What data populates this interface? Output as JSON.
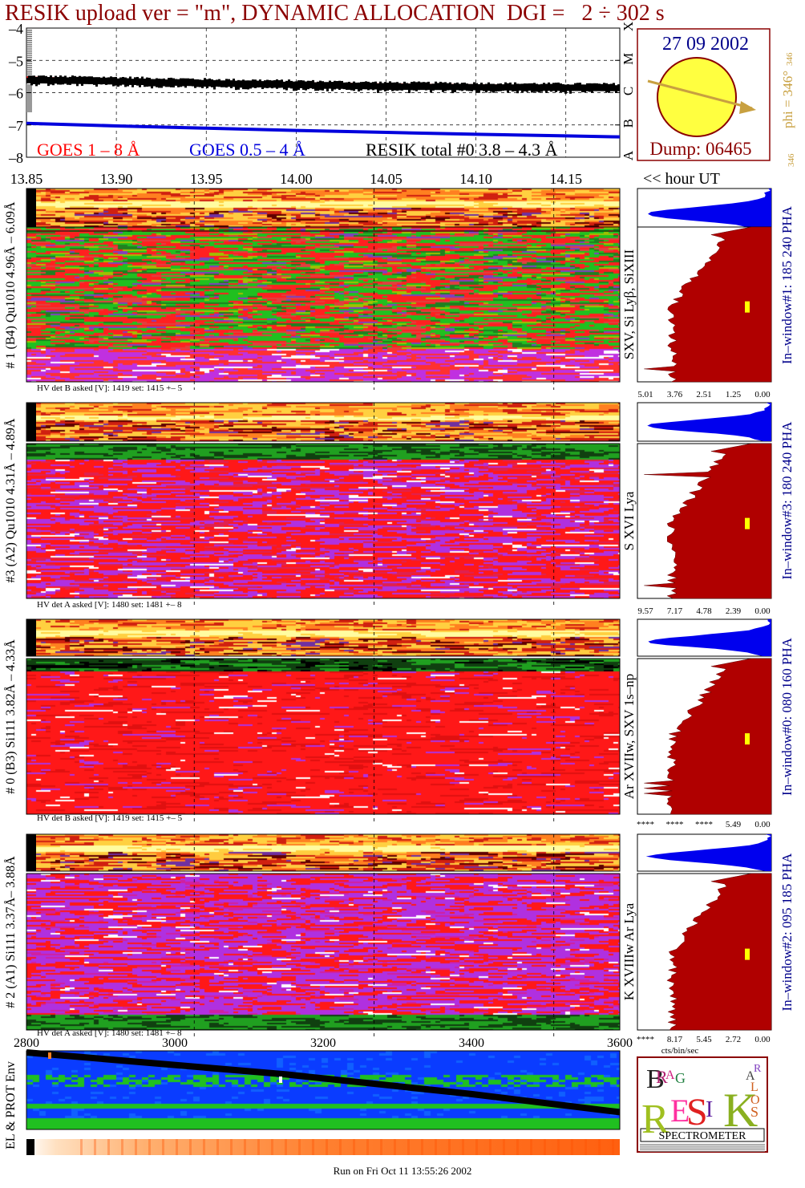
{
  "title": "RESIK upload ver = \"m\", DYNAMIC ALLOCATION  DGI =   2 ÷ 302 s",
  "footer": "Run on Fri Oct 11 13:55:26 2002",
  "colors": {
    "title": "#8b0000",
    "goes18": "#ff0000",
    "goes054": "#0000dd",
    "resik": "#000000",
    "hist_blue": "#0000ee",
    "hist_red": "#b00000",
    "marker": "#ffff00",
    "tan": "#c8a040",
    "darkblue": "#00008b"
  },
  "goes_panel": {
    "legend": {
      "goes18": "GOES 1 – 8 Å",
      "goes054": "GOES 0.5 – 4 Å",
      "resik": "RESIK total #0  3.8 – 4.3 Å"
    },
    "flare_classes": [
      "A",
      "B",
      "C",
      "M",
      "X"
    ],
    "yticks": [
      "–4",
      "–5",
      "–6",
      "–7",
      "–8"
    ]
  },
  "sun_panel": {
    "date": "27 09 2002",
    "dump": "Dump: 06465",
    "phi_label": "phi = 346°",
    "phi_small": "346",
    "phi_small2": "346"
  },
  "time_axis": {
    "ticks": [
      "13.85",
      "13.90",
      "13.95",
      "14.00",
      "14.05",
      "14.10",
      "14.15"
    ],
    "label": "<< hour UT"
  },
  "channels": [
    {
      "id": "1",
      "label": "# 1 (B4) Qu1010 4.96Å – 6.09Å",
      "lines": "SXV, Si Lyβ, SiXIII",
      "hv": "HV det B asked [V]:  1419 set:  1415  +–    5",
      "window": "In–window#1:  185 240 PHA",
      "xticks": [
        "5.01",
        "3.76",
        "2.51",
        "1.25",
        "0.00"
      ],
      "scheme": "green"
    },
    {
      "id": "3",
      "label": "#3 (A2) Qu1010  4.31Å – 4.89Å",
      "lines": "S XVI Lya",
      "hv": "HV det A asked [V]:  1480 set:  1481  +–    8",
      "window": "In–window#3:  180 240 PHA",
      "xticks": [
        "9.57",
        "7.17",
        "4.78",
        "2.39",
        "0.00"
      ],
      "scheme": "redviolet"
    },
    {
      "id": "0",
      "label": "# 0 (B3) Si111  3.82Å – 4.33Å",
      "lines": "Ar XVIIw, SXV 1s–np",
      "hv": "HV det B asked [V]:  1419 set:  1415  +–    5",
      "window": "In–window#0:  080 160 PHA",
      "xticks": [
        "****",
        "****",
        "****",
        "5.49",
        "0.00"
      ],
      "scheme": "red"
    },
    {
      "id": "2",
      "label": "# 2 (A1) Si111  3.37Å– 3.88Å",
      "lines": "K XVIIIw  Ar Lya",
      "hv": "HV det A asked [V]:  1480 set:  1481  +–    8",
      "window": "In–window#2:  095 185 PHA",
      "xticks": [
        "****",
        "8.17",
        "5.45",
        "2.72",
        "0.00"
      ],
      "xunit": "cts/bin/sec",
      "scheme": "violet"
    }
  ],
  "env_panel": {
    "ylabel": "EL & PROT Env",
    "xticks": [
      "2800",
      "3000",
      "3200",
      "3400",
      "3600"
    ]
  },
  "logo": {
    "text": "SPECTROMETER",
    "letters": [
      "B",
      "R",
      "A",
      "G",
      "R",
      "E",
      "S",
      "I",
      "K",
      "S",
      "O",
      "L",
      "A",
      "R"
    ]
  },
  "chart_data": [
    {
      "type": "line",
      "title": "RESIK upload ver = \"m\", DYNAMIC ALLOCATION  DGI =   2 ÷ 302 s",
      "xlabel": "hour UT",
      "ylabel": "",
      "xlim": [
        13.85,
        14.18
      ],
      "ylim": [
        -8,
        -4
      ],
      "series": [
        {
          "name": "GOES 1 – 8 Å",
          "x": [
            13.85,
            13.9,
            13.95,
            14.0,
            14.05,
            14.1,
            14.15,
            14.18
          ],
          "values": [
            -5.55,
            -5.62,
            -5.67,
            -5.72,
            -5.76,
            -5.79,
            -5.82,
            -5.83
          ]
        },
        {
          "name": "GOES 0.5 – 4 Å",
          "x": [
            13.85,
            13.9,
            13.95,
            14.0,
            14.05,
            14.1,
            14.15,
            14.18
          ],
          "values": [
            -6.95,
            -7.03,
            -7.1,
            -7.17,
            -7.23,
            -7.29,
            -7.34,
            -7.37
          ]
        },
        {
          "name": "RESIK total #0  3.8 – 4.3 Å",
          "x": [
            13.85,
            13.9,
            13.95,
            14.0,
            14.05,
            14.1,
            14.15,
            14.18
          ],
          "values": [
            -5.62,
            -5.66,
            -5.72,
            -5.77,
            -5.82,
            -5.84,
            -5.86,
            -5.87
          ]
        }
      ]
    },
    {
      "type": "line",
      "ylabel": "EL & PROT Env",
      "xlim": [
        2800,
        3600
      ],
      "ylim": [
        0,
        1
      ],
      "series": [
        {
          "name": "",
          "x": [
            2800,
            2950,
            3150,
            3400,
            3600
          ],
          "values": [
            0.98,
            0.86,
            0.7,
            0.45,
            0.22
          ]
        }
      ]
    }
  ]
}
